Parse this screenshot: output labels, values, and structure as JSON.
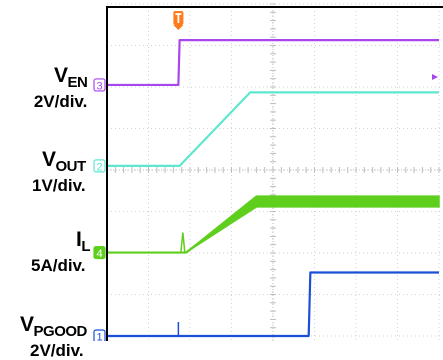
{
  "colors": {
    "background": "#ffffff",
    "grid_line": "#d2d2d2",
    "frame": "#000000",
    "ch1_vpgood": "#1a4fd6",
    "ch2_vout": "#5fe6d0",
    "ch3_ven": "#a846f0",
    "ch4_il": "#5fcf1e",
    "trigger_marker": "#ff7a1a"
  },
  "trigger_marker_icon": "trigger-t-icon",
  "channels": {
    "ven": {
      "name": "V",
      "sub": "EN",
      "scale": "2V/div.",
      "marker": "3"
    },
    "vout": {
      "name": "V",
      "sub": "OUT",
      "scale": "1V/div.",
      "marker": "2"
    },
    "il": {
      "name": "I",
      "sub": "L",
      "scale": "5A/div.",
      "marker": "4"
    },
    "vpgood": {
      "name": "V",
      "sub": "PGOOD",
      "scale": "2V/div.",
      "marker": "1"
    }
  },
  "chart_data": {
    "type": "line",
    "grid": true,
    "x_unit": "div",
    "y_unit": "div",
    "xlim": [
      0,
      8
    ],
    "ylim": [
      0,
      8
    ],
    "series": [
      {
        "name": "V_EN",
        "channel": "3",
        "color": "#a846f0",
        "x": [
          0,
          1.72,
          1.75,
          8
        ],
        "y": [
          6.05,
          6.05,
          7.13,
          7.13
        ]
      },
      {
        "name": "V_OUT",
        "channel": "2",
        "color": "#5fe6d0",
        "x": [
          0,
          1.75,
          3.45,
          8
        ],
        "y": [
          4.1,
          4.1,
          5.87,
          5.87
        ]
      },
      {
        "name": "I_L",
        "channel": "4",
        "color": "#5fcf1e",
        "x": [
          0,
          1.9,
          3.6,
          8
        ],
        "y": [
          2.01,
          2.01,
          3.24,
          3.24
        ],
        "ripple_div": 0.26
      },
      {
        "name": "V_PGOOD",
        "channel": "1",
        "color": "#1a4fd6",
        "x": [
          0,
          4.86,
          4.9,
          8
        ],
        "y": [
          0.0,
          0.0,
          1.53,
          1.53
        ]
      }
    ]
  }
}
